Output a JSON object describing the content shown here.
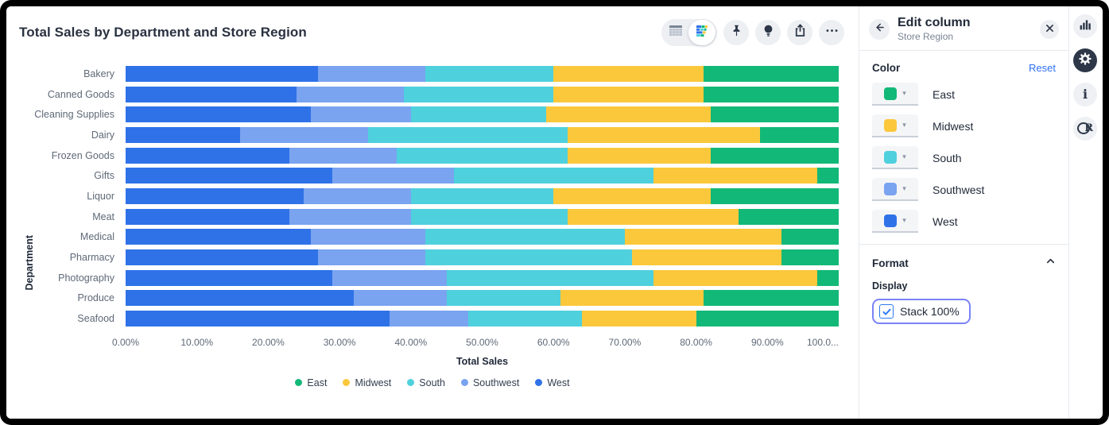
{
  "window": {
    "title": "Total Sales by Department and Store Region"
  },
  "toolbar": {
    "view_toggle": [
      {
        "name": "table-view",
        "selected": false
      },
      {
        "name": "chart-view",
        "selected": true
      }
    ],
    "buttons": [
      "pin",
      "lightbulb",
      "share",
      "more"
    ]
  },
  "chart_data": {
    "type": "bar",
    "orientation": "horizontal",
    "stacked": "100%",
    "xlabel": "Total Sales",
    "ylabel": "Department",
    "xlim": [
      0,
      100
    ],
    "grid": false,
    "legend_position": "bottom",
    "x_ticks": [
      "0.00%",
      "10.00%",
      "20.00%",
      "30.00%",
      "40.00%",
      "50.00%",
      "60.00%",
      "70.00%",
      "80.00%",
      "90.00%",
      "100.0..."
    ],
    "categories": [
      "Bakery",
      "Canned Goods",
      "Cleaning Supplies",
      "Dairy",
      "Frozen Goods",
      "Gifts",
      "Liquor",
      "Meat",
      "Medical",
      "Pharmacy",
      "Photography",
      "Produce",
      "Seafood"
    ],
    "stack_order": [
      "West",
      "Southwest",
      "South",
      "Midwest",
      "East"
    ],
    "series": [
      {
        "name": "East",
        "color": "#12b877",
        "values": [
          19,
          19,
          18,
          11,
          18,
          3,
          18,
          14,
          8,
          8,
          3,
          19,
          20
        ]
      },
      {
        "name": "Midwest",
        "color": "#fbc83c",
        "values": [
          21,
          21,
          23,
          27,
          20,
          23,
          22,
          24,
          22,
          21,
          23,
          20,
          16
        ]
      },
      {
        "name": "South",
        "color": "#4fd0dd",
        "values": [
          18,
          21,
          19,
          28,
          24,
          28,
          20,
          22,
          28,
          29,
          29,
          16,
          16
        ]
      },
      {
        "name": "Southwest",
        "color": "#7aa3f0",
        "values": [
          15,
          15,
          14,
          18,
          15,
          17,
          15,
          17,
          16,
          15,
          16,
          13,
          11
        ]
      },
      {
        "name": "West",
        "color": "#2f72e8",
        "values": [
          27,
          24,
          26,
          16,
          23,
          29,
          25,
          23,
          26,
          27,
          29,
          32,
          37
        ]
      }
    ],
    "legend": [
      "East",
      "Midwest",
      "South",
      "Southwest",
      "West"
    ]
  },
  "panel": {
    "title": "Edit column",
    "subtitle": "Store Region",
    "color_section": {
      "label": "Color",
      "reset_label": "Reset",
      "items": [
        {
          "name": "East",
          "color": "#12b877"
        },
        {
          "name": "Midwest",
          "color": "#fbc83c"
        },
        {
          "name": "South",
          "color": "#4fd0dd"
        },
        {
          "name": "Southwest",
          "color": "#7aa3f0"
        },
        {
          "name": "West",
          "color": "#2f72e8"
        }
      ]
    },
    "format_section": {
      "label": "Format",
      "display_label": "Display",
      "stack_checkbox": {
        "label": "Stack 100%",
        "checked": true
      }
    },
    "accent_colors": {
      "link_blue": "#2e6ff2",
      "focus_ring": "#7b82f7",
      "checkbox_blue": "#2e79f2"
    }
  },
  "rail": {
    "icons": [
      "bar-chart",
      "settings",
      "info",
      "r-logo"
    ],
    "active": "settings"
  }
}
